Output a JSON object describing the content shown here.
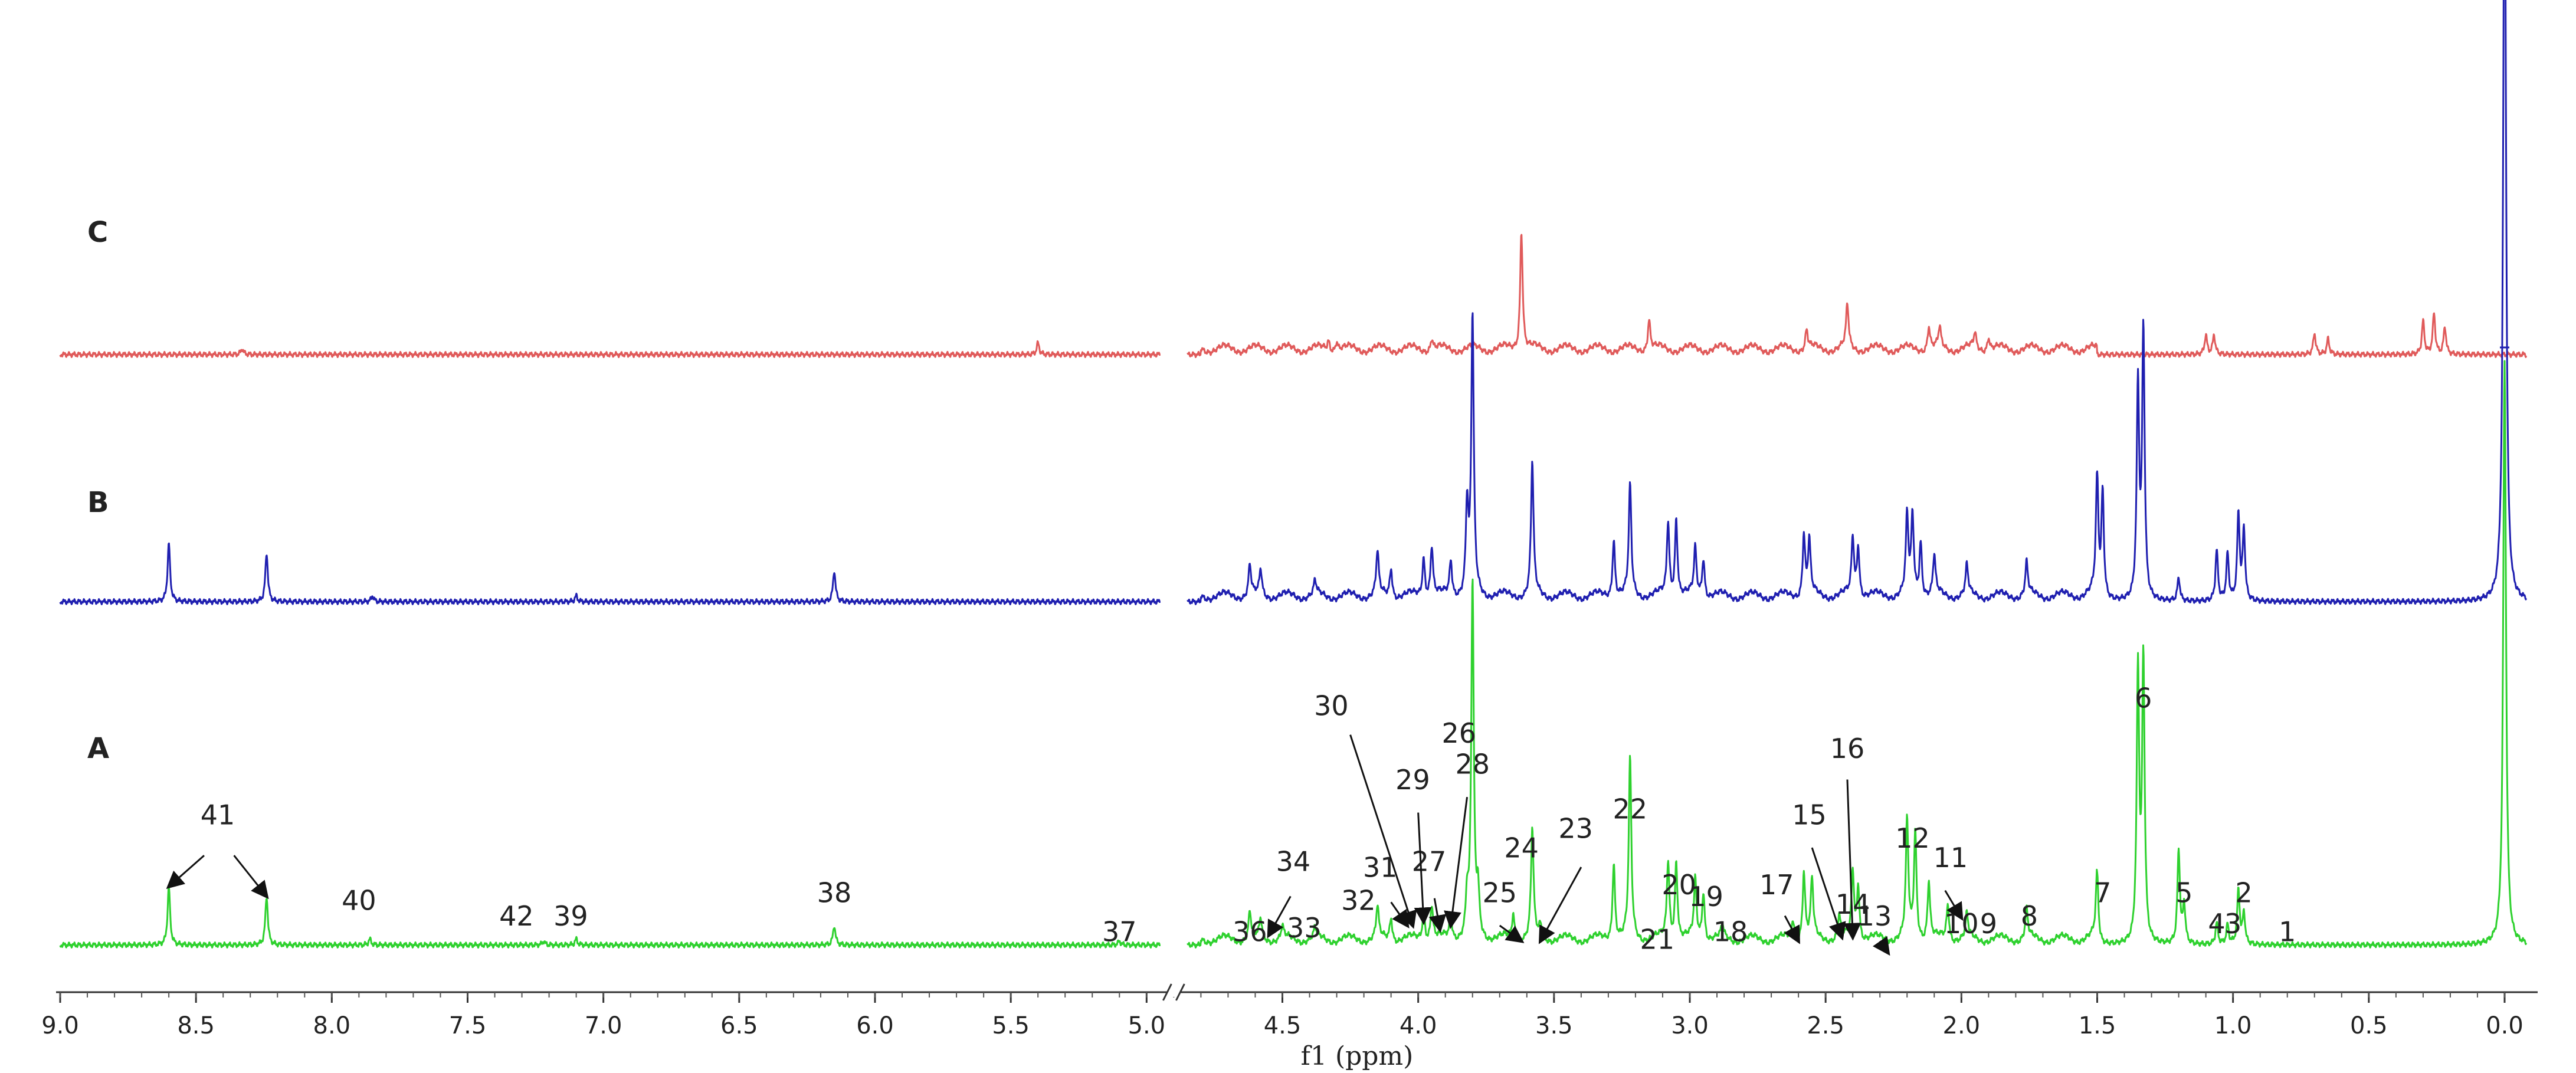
{
  "chart_data": {
    "type": "line",
    "xlabel": "f1 (ppm)",
    "x_reversed": true,
    "x_broken": [
      4.85,
      4.95
    ],
    "xlim": [
      9.0,
      -0.1
    ],
    "x_ticks": [
      "9.0",
      "8.5",
      "8.0",
      "7.5",
      "7.0",
      "6.5",
      "6.0",
      "5.5",
      "5.0",
      "4.5",
      "4.0",
      "3.5",
      "3.0",
      "2.5",
      "2.0",
      "1.5",
      "1.0",
      "0.5",
      "0.0"
    ],
    "series": [
      {
        "name": "C",
        "color": "#e05a5a",
        "peaks": [
          [
            8.33,
            0.03
          ],
          [
            5.4,
            0.06
          ],
          [
            4.33,
            0.05
          ],
          [
            4.3,
            0.05
          ],
          [
            3.95,
            0.06
          ],
          [
            3.62,
            0.62
          ],
          [
            3.15,
            0.16
          ],
          [
            2.57,
            0.1
          ],
          [
            2.42,
            0.22
          ],
          [
            2.12,
            0.12
          ],
          [
            2.08,
            0.1
          ],
          [
            1.95,
            0.08
          ],
          [
            1.9,
            0.07
          ],
          [
            1.1,
            0.1
          ],
          [
            1.07,
            0.1
          ],
          [
            0.7,
            0.11
          ],
          [
            0.65,
            0.08
          ],
          [
            0.3,
            0.17
          ],
          [
            0.26,
            0.21
          ],
          [
            0.22,
            0.14
          ]
        ]
      },
      {
        "name": "B",
        "color": "#1f1fb0",
        "peaks": [
          [
            8.6,
            0.3
          ],
          [
            8.24,
            0.25
          ],
          [
            7.85,
            0.03
          ],
          [
            7.1,
            0.03
          ],
          [
            6.15,
            0.16
          ],
          [
            4.62,
            0.16
          ],
          [
            4.58,
            0.13
          ],
          [
            4.38,
            0.07
          ],
          [
            4.15,
            0.22
          ],
          [
            4.1,
            0.15
          ],
          [
            3.98,
            0.2
          ],
          [
            3.95,
            0.26
          ],
          [
            3.88,
            0.18
          ],
          [
            3.82,
            0.45
          ],
          [
            3.8,
            1.42
          ],
          [
            3.58,
            0.68
          ],
          [
            3.28,
            0.3
          ],
          [
            3.22,
            0.56
          ],
          [
            3.08,
            0.38
          ],
          [
            3.05,
            0.4
          ],
          [
            2.98,
            0.24
          ],
          [
            2.95,
            0.2
          ],
          [
            2.58,
            0.32
          ],
          [
            2.56,
            0.28
          ],
          [
            2.4,
            0.3
          ],
          [
            2.38,
            0.26
          ],
          [
            2.2,
            0.4
          ],
          [
            2.18,
            0.4
          ],
          [
            2.15,
            0.28
          ],
          [
            2.1,
            0.2
          ],
          [
            1.98,
            0.15
          ],
          [
            1.76,
            0.17
          ],
          [
            1.5,
            0.62
          ],
          [
            1.48,
            0.55
          ],
          [
            1.35,
            1.1
          ],
          [
            1.33,
            1.38
          ],
          [
            1.2,
            0.12
          ],
          [
            1.06,
            0.26
          ],
          [
            1.02,
            0.24
          ],
          [
            0.98,
            0.44
          ],
          [
            0.96,
            0.36
          ],
          [
            0.0,
            4.2
          ]
        ]
      },
      {
        "name": "A",
        "color": "#2ed12e",
        "peaks": [
          [
            8.6,
            0.3
          ],
          [
            8.24,
            0.25
          ],
          [
            7.86,
            0.03
          ],
          [
            7.22,
            0.02
          ],
          [
            7.1,
            0.03
          ],
          [
            6.15,
            0.1
          ],
          [
            5.1,
            0.02
          ],
          [
            4.62,
            0.14
          ],
          [
            4.58,
            0.1
          ],
          [
            4.5,
            0.06
          ],
          [
            4.38,
            0.05
          ],
          [
            4.15,
            0.16
          ],
          [
            4.1,
            0.12
          ],
          [
            3.98,
            0.15
          ],
          [
            3.95,
            0.18
          ],
          [
            3.88,
            0.12
          ],
          [
            3.82,
            0.2
          ],
          [
            3.8,
            1.82
          ],
          [
            3.78,
            0.22
          ],
          [
            3.65,
            0.13
          ],
          [
            3.58,
            0.56
          ],
          [
            3.55,
            0.06
          ],
          [
            3.28,
            0.4
          ],
          [
            3.22,
            0.92
          ],
          [
            3.08,
            0.4
          ],
          [
            3.05,
            0.4
          ],
          [
            2.98,
            0.3
          ],
          [
            2.95,
            0.25
          ],
          [
            2.88,
            0.06
          ],
          [
            2.62,
            0.1
          ],
          [
            2.58,
            0.35
          ],
          [
            2.55,
            0.3
          ],
          [
            2.45,
            0.12
          ],
          [
            2.4,
            0.35
          ],
          [
            2.38,
            0.28
          ],
          [
            2.2,
            0.6
          ],
          [
            2.17,
            0.55
          ],
          [
            2.12,
            0.3
          ],
          [
            2.05,
            0.18
          ],
          [
            1.98,
            0.12
          ],
          [
            1.76,
            0.15
          ],
          [
            1.5,
            0.36
          ],
          [
            1.35,
            1.4
          ],
          [
            1.33,
            1.45
          ],
          [
            1.2,
            0.48
          ],
          [
            1.18,
            0.2
          ],
          [
            1.06,
            0.11
          ],
          [
            1.02,
            0.1
          ],
          [
            0.98,
            0.28
          ],
          [
            0.96,
            0.16
          ],
          [
            0.0,
            3.0
          ]
        ]
      }
    ],
    "trace_labels": [
      "C",
      "B",
      "A"
    ],
    "peak_labels": [
      {
        "text": "41",
        "ppm": 8.42,
        "h": 0.62
      },
      {
        "text": "40",
        "ppm": 7.9,
        "h": 0.18
      },
      {
        "text": "42",
        "ppm": 7.32,
        "h": 0.1
      },
      {
        "text": "39",
        "ppm": 7.12,
        "h": 0.1
      },
      {
        "text": "38",
        "ppm": 6.15,
        "h": 0.22
      },
      {
        "text": "37",
        "ppm": 5.1,
        "h": 0.02
      },
      {
        "text": "36",
        "ppm": 4.62,
        "h": 0.02
      },
      {
        "text": "34",
        "ppm": 4.46,
        "h": 0.38
      },
      {
        "text": "33",
        "ppm": 4.42,
        "h": 0.04
      },
      {
        "text": "32",
        "ppm": 4.22,
        "h": 0.18
      },
      {
        "text": "31",
        "ppm": 4.14,
        "h": 0.35
      },
      {
        "text": "30",
        "ppm": 4.32,
        "h": 1.18
      },
      {
        "text": "29",
        "ppm": 4.02,
        "h": 0.8
      },
      {
        "text": "27",
        "ppm": 3.96,
        "h": 0.38
      },
      {
        "text": "28",
        "ppm": 3.8,
        "h": 0.88
      },
      {
        "text": "26",
        "ppm": 3.85,
        "h": 1.04
      },
      {
        "text": "25",
        "ppm": 3.7,
        "h": 0.22
      },
      {
        "text": "24",
        "ppm": 3.62,
        "h": 0.45
      },
      {
        "text": "23",
        "ppm": 3.42,
        "h": 0.55
      },
      {
        "text": "22",
        "ppm": 3.22,
        "h": 0.65
      },
      {
        "text": "21",
        "ppm": 3.12,
        "h": -0.02
      },
      {
        "text": "20",
        "ppm": 3.04,
        "h": 0.26
      },
      {
        "text": "19",
        "ppm": 2.94,
        "h": 0.2
      },
      {
        "text": "18",
        "ppm": 2.85,
        "h": 0.02
      },
      {
        "text": "17",
        "ppm": 2.68,
        "h": 0.26
      },
      {
        "text": "15",
        "ppm": 2.56,
        "h": 0.62
      },
      {
        "text": "16",
        "ppm": 2.42,
        "h": 0.96
      },
      {
        "text": "14",
        "ppm": 2.4,
        "h": 0.16
      },
      {
        "text": "13",
        "ppm": 2.32,
        "h": 0.1
      },
      {
        "text": "12",
        "ppm": 2.18,
        "h": 0.5
      },
      {
        "text": "11",
        "ppm": 2.04,
        "h": 0.4
      },
      {
        "text": "10",
        "ppm": 2.0,
        "h": 0.06
      },
      {
        "text": "9",
        "ppm": 1.9,
        "h": 0.06
      },
      {
        "text": "8",
        "ppm": 1.75,
        "h": 0.1
      },
      {
        "text": "7",
        "ppm": 1.48,
        "h": 0.22
      },
      {
        "text": "6",
        "ppm": 1.33,
        "h": 1.22
      },
      {
        "text": "5",
        "ppm": 1.18,
        "h": 0.22
      },
      {
        "text": "4",
        "ppm": 1.06,
        "h": 0.06
      },
      {
        "text": "3",
        "ppm": 1.0,
        "h": 0.06
      },
      {
        "text": "2",
        "ppm": 0.96,
        "h": 0.22
      },
      {
        "text": "1",
        "ppm": 0.8,
        "h": 0.02
      }
    ],
    "peak_arrows": [
      {
        "from_ppm": 8.47,
        "from_h": 0.46,
        "to_ppm": 8.6,
        "to_h": 0.3
      },
      {
        "from_ppm": 8.36,
        "from_h": 0.46,
        "to_ppm": 8.24,
        "to_h": 0.25
      },
      {
        "from_ppm": 4.47,
        "from_h": 0.25,
        "to_ppm": 4.55,
        "to_h": 0.05
      },
      {
        "from_ppm": 4.25,
        "from_h": 1.08,
        "to_ppm": 4.02,
        "to_h": 0.1
      },
      {
        "from_ppm": 4.1,
        "from_h": 0.22,
        "to_ppm": 4.04,
        "to_h": 0.1
      },
      {
        "from_ppm": 4.0,
        "from_h": 0.68,
        "to_ppm": 3.98,
        "to_h": 0.12
      },
      {
        "from_ppm": 3.94,
        "from_h": 0.24,
        "to_ppm": 3.92,
        "to_h": 0.08
      },
      {
        "from_ppm": 3.82,
        "from_h": 0.76,
        "to_ppm": 3.88,
        "to_h": 0.1
      },
      {
        "from_ppm": 3.7,
        "from_h": 0.1,
        "to_ppm": 3.62,
        "to_h": 0.02
      },
      {
        "from_ppm": 3.4,
        "from_h": 0.4,
        "to_ppm": 3.55,
        "to_h": 0.02
      },
      {
        "from_ppm": 2.55,
        "from_h": 0.5,
        "to_ppm": 2.44,
        "to_h": 0.04
      },
      {
        "from_ppm": 2.42,
        "from_h": 0.85,
        "to_ppm": 2.4,
        "to_h": 0.04
      },
      {
        "from_ppm": 2.65,
        "from_h": 0.15,
        "to_ppm": 2.6,
        "to_h": 0.02
      },
      {
        "from_ppm": 2.3,
        "from_h": 0.02,
        "to_ppm": 2.27,
        "to_h": -0.04
      },
      {
        "from_ppm": 2.06,
        "from_h": 0.28,
        "to_ppm": 2.0,
        "to_h": 0.14
      }
    ]
  }
}
